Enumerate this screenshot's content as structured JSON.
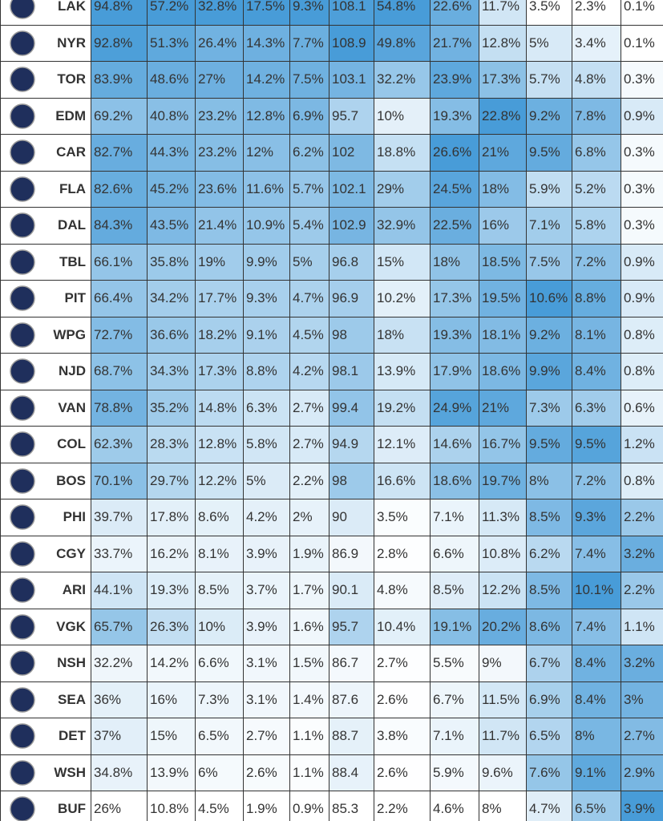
{
  "table": {
    "rows": [
      [
        "LAK",
        "94.8%",
        "57.2%",
        "32.8%",
        "17.5%",
        "9.3%",
        "108.1",
        "54.8%",
        "22.6%",
        "11.7%",
        "3.5%",
        "2.3%",
        "0.1%"
      ],
      [
        "NYR",
        "92.8%",
        "51.3%",
        "26.4%",
        "14.3%",
        "7.7%",
        "108.9",
        "49.8%",
        "21.7%",
        "12.8%",
        "5%",
        "3.4%",
        "0.1%"
      ],
      [
        "TOR",
        "83.9%",
        "48.6%",
        "27%",
        "14.2%",
        "7.5%",
        "103.1",
        "32.2%",
        "23.9%",
        "17.3%",
        "5.7%",
        "4.8%",
        "0.3%"
      ],
      [
        "EDM",
        "69.2%",
        "40.8%",
        "23.2%",
        "12.8%",
        "6.9%",
        "95.7",
        "10%",
        "19.3%",
        "22.8%",
        "9.2%",
        "7.8%",
        "0.9%"
      ],
      [
        "CAR",
        "82.7%",
        "44.3%",
        "23.2%",
        "12%",
        "6.2%",
        "102",
        "18.8%",
        "26.6%",
        "21%",
        "9.5%",
        "6.8%",
        "0.3%"
      ],
      [
        "FLA",
        "82.6%",
        "45.2%",
        "23.6%",
        "11.6%",
        "5.7%",
        "102.1",
        "29%",
        "24.5%",
        "18%",
        "5.9%",
        "5.2%",
        "0.3%"
      ],
      [
        "DAL",
        "84.3%",
        "43.5%",
        "21.4%",
        "10.9%",
        "5.4%",
        "102.9",
        "32.9%",
        "22.5%",
        "16%",
        "7.1%",
        "5.8%",
        "0.3%"
      ],
      [
        "TBL",
        "66.1%",
        "35.8%",
        "19%",
        "9.9%",
        "5%",
        "96.8",
        "15%",
        "18%",
        "18.5%",
        "7.5%",
        "7.2%",
        "0.9%"
      ],
      [
        "PIT",
        "66.4%",
        "34.2%",
        "17.7%",
        "9.3%",
        "4.7%",
        "96.9",
        "10.2%",
        "17.3%",
        "19.5%",
        "10.6%",
        "8.8%",
        "0.9%"
      ],
      [
        "WPG",
        "72.7%",
        "36.6%",
        "18.2%",
        "9.1%",
        "4.5%",
        "98",
        "18%",
        "19.3%",
        "18.1%",
        "9.2%",
        "8.1%",
        "0.8%"
      ],
      [
        "NJD",
        "68.7%",
        "34.3%",
        "17.3%",
        "8.8%",
        "4.2%",
        "98.1",
        "13.9%",
        "17.9%",
        "18.6%",
        "9.9%",
        "8.4%",
        "0.8%"
      ],
      [
        "VAN",
        "78.8%",
        "35.2%",
        "14.8%",
        "6.3%",
        "2.7%",
        "99.4",
        "19.2%",
        "24.9%",
        "21%",
        "7.3%",
        "6.3%",
        "0.6%"
      ],
      [
        "COL",
        "62.3%",
        "28.3%",
        "12.8%",
        "5.8%",
        "2.7%",
        "94.9",
        "12.1%",
        "14.6%",
        "16.7%",
        "9.5%",
        "9.5%",
        "1.2%"
      ],
      [
        "BOS",
        "70.1%",
        "29.7%",
        "12.2%",
        "5%",
        "2.2%",
        "98",
        "16.6%",
        "18.6%",
        "19.7%",
        "8%",
        "7.2%",
        "0.8%"
      ],
      [
        "PHI",
        "39.7%",
        "17.8%",
        "8.6%",
        "4.2%",
        "2%",
        "90",
        "3.5%",
        "7.1%",
        "11.3%",
        "8.5%",
        "9.3%",
        "2.2%"
      ],
      [
        "CGY",
        "33.7%",
        "16.2%",
        "8.1%",
        "3.9%",
        "1.9%",
        "86.9",
        "2.8%",
        "6.6%",
        "10.8%",
        "6.2%",
        "7.4%",
        "3.2%"
      ],
      [
        "ARI",
        "44.1%",
        "19.3%",
        "8.5%",
        "3.7%",
        "1.7%",
        "90.1",
        "4.8%",
        "8.5%",
        "12.2%",
        "8.5%",
        "10.1%",
        "2.2%"
      ],
      [
        "VGK",
        "65.7%",
        "26.3%",
        "10%",
        "3.9%",
        "1.6%",
        "95.7",
        "10.4%",
        "19.1%",
        "20.2%",
        "8.6%",
        "7.4%",
        "1.1%"
      ],
      [
        "NSH",
        "32.2%",
        "14.2%",
        "6.6%",
        "3.1%",
        "1.5%",
        "86.7",
        "2.7%",
        "5.5%",
        "9%",
        "6.7%",
        "8.4%",
        "3.2%"
      ],
      [
        "SEA",
        "36%",
        "16%",
        "7.3%",
        "3.1%",
        "1.4%",
        "87.6",
        "2.6%",
        "6.7%",
        "11.5%",
        "6.9%",
        "8.4%",
        "3%"
      ],
      [
        "DET",
        "37%",
        "15%",
        "6.5%",
        "2.7%",
        "1.1%",
        "88.7",
        "3.8%",
        "7.1%",
        "11.7%",
        "6.5%",
        "8%",
        "2.7%"
      ],
      [
        "WSH",
        "34.8%",
        "13.9%",
        "6%",
        "2.6%",
        "1.1%",
        "88.4",
        "2.6%",
        "5.9%",
        "9.6%",
        "7.6%",
        "9.1%",
        "2.9%"
      ],
      [
        "BUF",
        "26%",
        "10.8%",
        "4.5%",
        "1.9%",
        "0.9%",
        "85.3",
        "2.2%",
        "4.6%",
        "8%",
        "4.7%",
        "6.5%",
        "3.9%"
      ]
    ]
  }
}
